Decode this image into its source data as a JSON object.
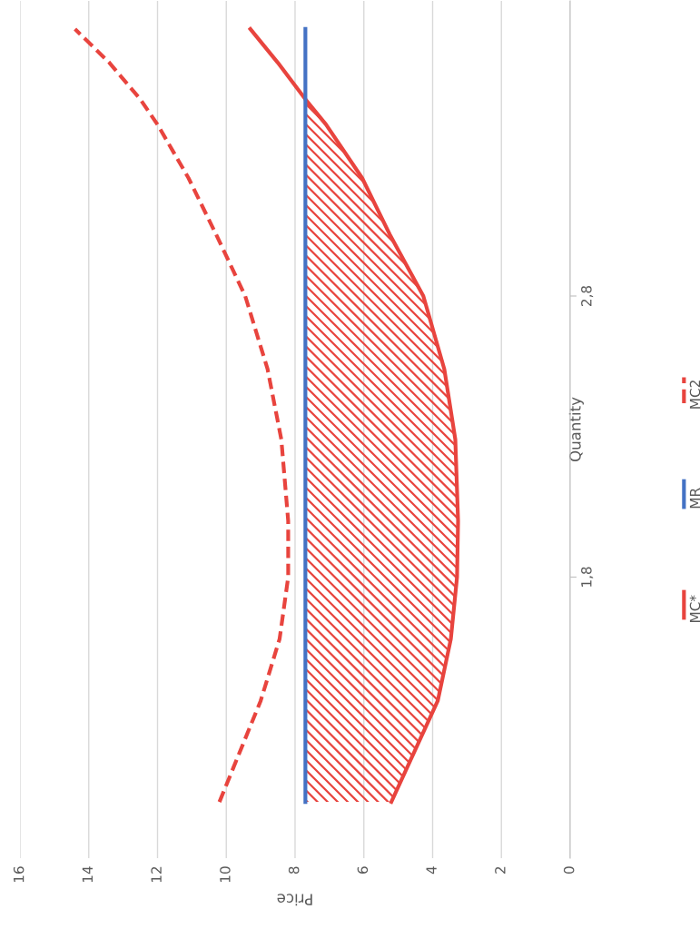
{
  "chart_data": {
    "type": "line",
    "xlabel": "Price",
    "ylabel": "Quantity",
    "series": [
      {
        "name": "MC*",
        "color": "#e8443e",
        "line_style": "solid",
        "x": [
          5.2,
          3.85,
          3.47,
          3.29,
          3.26,
          3.34,
          3.66,
          4.27,
          5.25,
          6.05,
          7.1,
          7.7,
          8.5,
          9.3
        ],
        "values": [
          1.0,
          1.36,
          1.58,
          1.8,
          2.0,
          2.29,
          2.54,
          2.8,
          3.02,
          3.22,
          3.41,
          3.5,
          3.63,
          3.75
        ]
      },
      {
        "name": "MR",
        "color": "#4472c4",
        "line_style": "solid",
        "x": [
          7.7,
          7.7
        ],
        "values": [
          1.0,
          3.75
        ]
      },
      {
        "name": "MC2",
        "color": "#e8443e",
        "line_style": "dashed",
        "x": [
          10.2,
          9.0,
          8.45,
          8.2,
          8.2,
          8.4,
          8.8,
          9.45,
          10.3,
          11.1,
          12.0,
          12.5,
          13.4,
          14.4
        ],
        "values": [
          1.0,
          1.36,
          1.58,
          1.8,
          2.0,
          2.29,
          2.54,
          2.8,
          3.02,
          3.22,
          3.41,
          3.5,
          3.63,
          3.75
        ]
      },
      {
        "type": "area",
        "color": "#e8443e",
        "x": [
          5.2,
          3.85,
          3.47,
          3.29,
          3.26,
          3.34,
          3.66,
          4.27,
          5.25,
          6.05,
          7.1,
          7.7,
          7.7
        ],
        "values": [
          1.0,
          1.36,
          1.58,
          1.8,
          2.0,
          2.29,
          2.54,
          2.8,
          3.02,
          3.22,
          3.41,
          3.5,
          1.0
        ]
      }
    ],
    "xlim": [
      16,
      0
    ],
    "xticks": [
      16,
      14,
      12,
      10,
      8,
      6,
      4,
      2,
      0
    ],
    "ylim": [
      0.8,
      3.85
    ],
    "yticks": [
      {
        "value": 1.8,
        "label": "1,8"
      },
      {
        "value": 2.8,
        "label": "2,8"
      }
    ],
    "grid": "x",
    "legend": "right",
    "marker": "none"
  }
}
